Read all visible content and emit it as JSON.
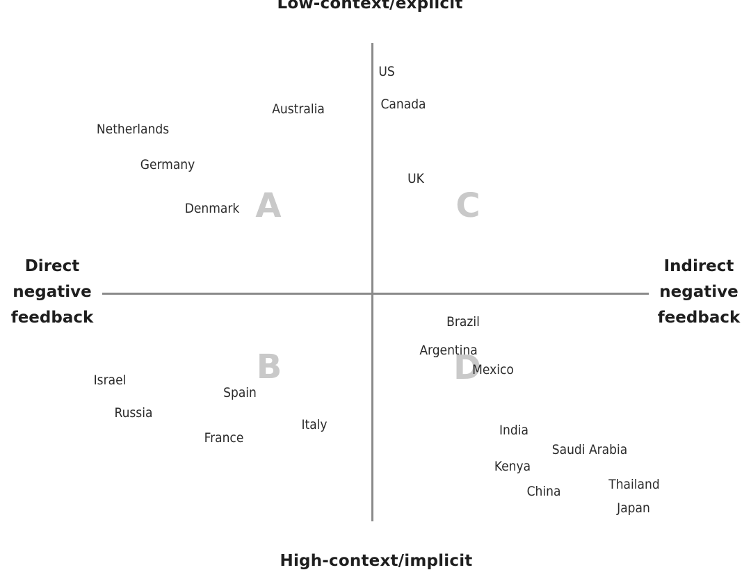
{
  "axes": {
    "top": "Low-context/explicit",
    "bottom": "High-context/implicit",
    "left": [
      "Direct",
      "negative",
      "feedback"
    ],
    "right": [
      "Indirect",
      "negative",
      "feedback"
    ],
    "line_color": "#8a8a8a"
  },
  "quadrants": [
    {
      "letter": "A"
    },
    {
      "letter": "B"
    },
    {
      "letter": "C"
    },
    {
      "letter": "D"
    }
  ],
  "countries": [
    {
      "name": "US"
    },
    {
      "name": "Canada"
    },
    {
      "name": "Australia"
    },
    {
      "name": "Netherlands"
    },
    {
      "name": "Germany"
    },
    {
      "name": "UK"
    },
    {
      "name": "Denmark"
    },
    {
      "name": "Brazil"
    },
    {
      "name": "Argentina"
    },
    {
      "name": "Mexico"
    },
    {
      "name": "Israel"
    },
    {
      "name": "Spain"
    },
    {
      "name": "Russia"
    },
    {
      "name": "Italy"
    },
    {
      "name": "France"
    },
    {
      "name": "India"
    },
    {
      "name": "Saudi Arabia"
    },
    {
      "name": "Kenya"
    },
    {
      "name": "Thailand"
    },
    {
      "name": "China"
    },
    {
      "name": "Japan"
    }
  ]
}
